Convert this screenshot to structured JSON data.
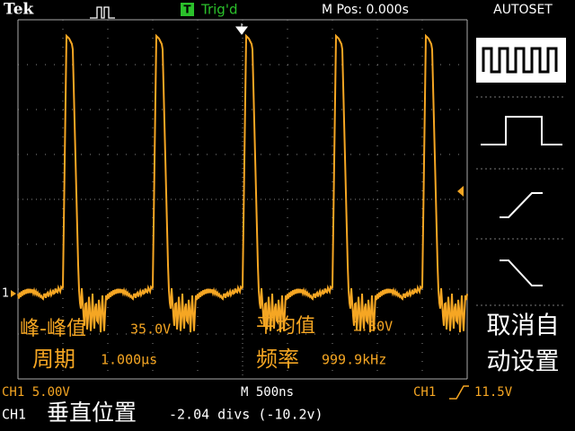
{
  "header": {
    "brand": "Tek",
    "trigger_icon": "T",
    "trigger_status": "Trig'd",
    "position": "M Pos: 0.000s",
    "menu_title": "AUTOSET"
  },
  "measurements": [
    {
      "label": "峰-峰值",
      "value": "35.0V"
    },
    {
      "label": "平均值",
      "value": "1.30V"
    },
    {
      "label": "周期",
      "value": "1.000μs"
    },
    {
      "label": "频率",
      "value": "999.9kHz"
    }
  ],
  "menu": {
    "undo_line1": "取消自",
    "undo_line2": "动设置"
  },
  "markers": {
    "ch1": "1"
  },
  "status": {
    "channel_scale": "CH1 5.00V",
    "timebase": "M 500ns",
    "trigger_source": "CH1",
    "trigger_level": "11.5V"
  },
  "message": {
    "channel": "CH1",
    "label": "垂直位置",
    "value": "-2.04 divs (-10.2v)"
  }
}
